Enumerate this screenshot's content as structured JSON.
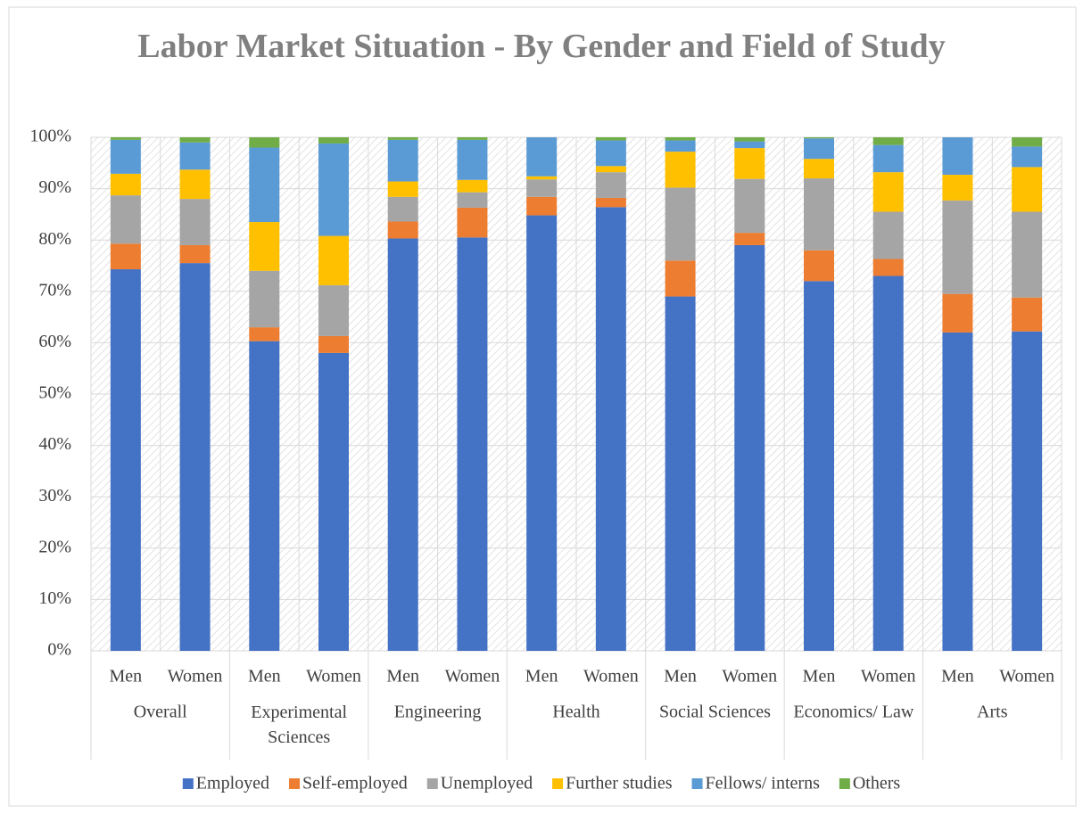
{
  "chart_data": {
    "type": "stacked-bar",
    "title": "Labor Market Situation - By Gender and Field of Study",
    "categories": [
      "Men",
      "Women",
      "Men",
      "Women",
      "Men",
      "Women",
      "Men",
      "Women",
      "Men",
      "Women",
      "Men",
      "Women",
      "Men",
      "Women"
    ],
    "groups": [
      "Overall",
      "Experimental Sciences",
      "Engineering",
      "Health",
      "Social Sciences",
      "Economics/ Law",
      "Arts"
    ],
    "series": [
      {
        "name": "Employed",
        "color": "#4472c4",
        "values": [
          74.3,
          75.5,
          60.3,
          58,
          80.3,
          80.5,
          84.8,
          86.4,
          69,
          79,
          72,
          73,
          62,
          62.2
        ]
      },
      {
        "name": "Self-employed",
        "color": "#ed7d31",
        "values": [
          5,
          3.5,
          2.7,
          3.3,
          3.3,
          5.8,
          3.6,
          1.8,
          7,
          2.4,
          6,
          3.3,
          7.5,
          6.6
        ]
      },
      {
        "name": "Unemployed",
        "color": "#a5a5a5",
        "values": [
          9.4,
          9,
          11,
          9.9,
          4.8,
          3,
          3.4,
          5,
          14.2,
          10.5,
          14,
          9.2,
          18.2,
          16.7
        ]
      },
      {
        "name": "Further studies",
        "color": "#ffc000",
        "values": [
          4.2,
          5.7,
          9.5,
          9.6,
          3,
          2.4,
          0.6,
          1.2,
          7,
          6,
          3.8,
          7.7,
          5,
          8.7
        ]
      },
      {
        "name": "Fellows/ interns",
        "color": "#5b9bd5",
        "values": [
          6.6,
          5.3,
          14.5,
          18,
          8.1,
          7.8,
          7.6,
          5,
          2.2,
          1.3,
          4,
          5.3,
          7.3,
          4
        ]
      },
      {
        "name": "Others",
        "color": "#70ad47",
        "values": [
          0.5,
          1,
          2,
          1.2,
          0.5,
          0.5,
          0,
          0.6,
          0.6,
          0.8,
          0.2,
          1.5,
          0,
          1.8
        ]
      }
    ],
    "ylim": [
      0,
      100
    ],
    "yticks": [
      {
        "value": 0,
        "label": "0%"
      },
      {
        "value": 10,
        "label": "10%"
      },
      {
        "value": 20,
        "label": "20%"
      },
      {
        "value": 30,
        "label": "30%"
      },
      {
        "value": 40,
        "label": "40%"
      },
      {
        "value": 50,
        "label": "50%"
      },
      {
        "value": 60,
        "label": "60%"
      },
      {
        "value": 70,
        "label": "70%"
      },
      {
        "value": 80,
        "label": "80%"
      },
      {
        "value": 90,
        "label": "90%"
      },
      {
        "value": 100,
        "label": "100%"
      }
    ],
    "grid": true,
    "legend": "bottom"
  }
}
